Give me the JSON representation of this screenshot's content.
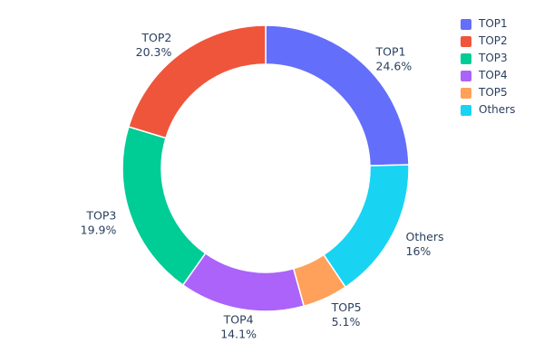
{
  "chart_data": {
    "type": "pie",
    "title": "",
    "hole_ratio": 0.73,
    "grid": false,
    "legend_position": "top-right",
    "text_color": "#2a3f5f",
    "background_color": "#ffffff",
    "slice_border_color": "#ffffff",
    "start_angle_deg": -90,
    "direction": "clockwise",
    "slices": [
      {
        "label": "TOP1",
        "value": 24.6,
        "pct_label": "24.6%",
        "color": "#636EFA"
      },
      {
        "label": "TOP2",
        "value": 20.3,
        "pct_label": "20.3%",
        "color": "#EF553B"
      },
      {
        "label": "TOP3",
        "value": 19.9,
        "pct_label": "19.9%",
        "color": "#00CC96"
      },
      {
        "label": "TOP4",
        "value": 14.1,
        "pct_label": "14.1%",
        "color": "#AB63FA"
      },
      {
        "label": "TOP5",
        "value": 5.1,
        "pct_label": "5.1%",
        "color": "#FFA15A"
      },
      {
        "label": "Others",
        "value": 16,
        "pct_label": "16%",
        "color": "#19D3F3"
      }
    ],
    "draw_order": [
      "TOP1",
      "Others",
      "TOP5",
      "TOP4",
      "TOP3",
      "TOP2"
    ]
  }
}
